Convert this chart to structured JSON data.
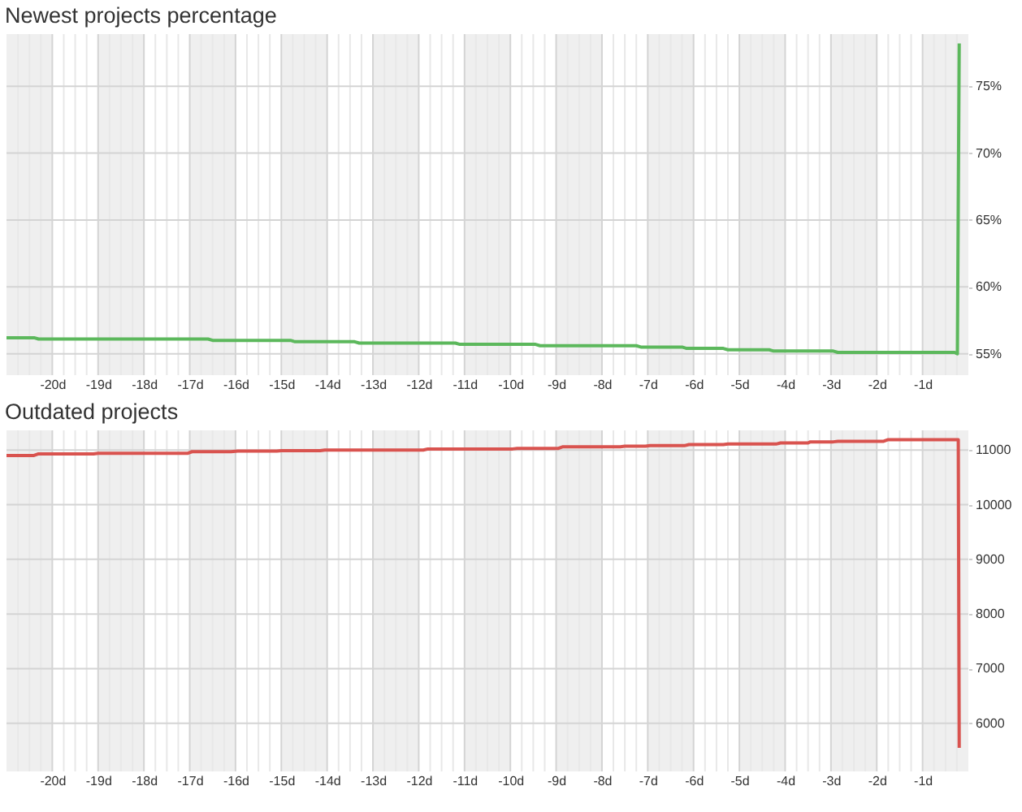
{
  "chart_data": [
    {
      "type": "line",
      "title": "Newest projects percentage",
      "x": [
        -21,
        -20.4,
        -20.3,
        -16.6,
        -16.5,
        -14.8,
        -14.7,
        -13.4,
        -13.3,
        -11.2,
        -11.1,
        -9.45,
        -9.35,
        -7.25,
        -7.15,
        -6.25,
        -6.15,
        -5.35,
        -5.25,
        -4.35,
        -4.25,
        -2.95,
        -2.85,
        -0.3,
        -0.24,
        -0.2
      ],
      "series": [
        {
          "color": "#5cb85c",
          "values": [
            56.2,
            56.2,
            56.1,
            56.1,
            56.0,
            56.0,
            55.9,
            55.9,
            55.8,
            55.8,
            55.7,
            55.7,
            55.6,
            55.6,
            55.5,
            55.5,
            55.4,
            55.4,
            55.3,
            55.3,
            55.2,
            55.2,
            55.1,
            55.1,
            55.0,
            78.2
          ]
        }
      ],
      "xlim": [
        -21,
        0
      ],
      "xticks": [
        {
          "value": -20.75,
          "label": null
        },
        {
          "value": -20.5,
          "label": null
        },
        {
          "value": -20.25,
          "label": null
        },
        {
          "value": -20,
          "label": "-20d"
        },
        {
          "value": -19.75,
          "label": null
        },
        {
          "value": -19.5,
          "label": null
        },
        {
          "value": -19.25,
          "label": null
        },
        {
          "value": -19,
          "label": "-19d"
        },
        {
          "value": -18.75,
          "label": null
        },
        {
          "value": -18.5,
          "label": null
        },
        {
          "value": -18.25,
          "label": null
        },
        {
          "value": -18,
          "label": "-18d"
        },
        {
          "value": -17.75,
          "label": null
        },
        {
          "value": -17.5,
          "label": null
        },
        {
          "value": -17.25,
          "label": null
        },
        {
          "value": -17,
          "label": "-17d"
        },
        {
          "value": -16.75,
          "label": null
        },
        {
          "value": -16.5,
          "label": null
        },
        {
          "value": -16.25,
          "label": null
        },
        {
          "value": -16,
          "label": "-16d"
        },
        {
          "value": -15.75,
          "label": null
        },
        {
          "value": -15.5,
          "label": null
        },
        {
          "value": -15.25,
          "label": null
        },
        {
          "value": -15,
          "label": "-15d"
        },
        {
          "value": -14.75,
          "label": null
        },
        {
          "value": -14.5,
          "label": null
        },
        {
          "value": -14.25,
          "label": null
        },
        {
          "value": -14,
          "label": "-14d"
        },
        {
          "value": -13.75,
          "label": null
        },
        {
          "value": -13.5,
          "label": null
        },
        {
          "value": -13.25,
          "label": null
        },
        {
          "value": -13,
          "label": "-13d"
        },
        {
          "value": -12.75,
          "label": null
        },
        {
          "value": -12.5,
          "label": null
        },
        {
          "value": -12.25,
          "label": null
        },
        {
          "value": -12,
          "label": "-12d"
        },
        {
          "value": -11.75,
          "label": null
        },
        {
          "value": -11.5,
          "label": null
        },
        {
          "value": -11.25,
          "label": null
        },
        {
          "value": -11,
          "label": "-11d"
        },
        {
          "value": -10.75,
          "label": null
        },
        {
          "value": -10.5,
          "label": null
        },
        {
          "value": -10.25,
          "label": null
        },
        {
          "value": -10,
          "label": "-10d"
        },
        {
          "value": -9.75,
          "label": null
        },
        {
          "value": -9.5,
          "label": null
        },
        {
          "value": -9.25,
          "label": null
        },
        {
          "value": -9,
          "label": "-9d"
        },
        {
          "value": -8.75,
          "label": null
        },
        {
          "value": -8.5,
          "label": null
        },
        {
          "value": -8.25,
          "label": null
        },
        {
          "value": -8,
          "label": "-8d"
        },
        {
          "value": -7.75,
          "label": null
        },
        {
          "value": -7.5,
          "label": null
        },
        {
          "value": -7.25,
          "label": null
        },
        {
          "value": -7,
          "label": "-7d"
        },
        {
          "value": -6.75,
          "label": null
        },
        {
          "value": -6.5,
          "label": null
        },
        {
          "value": -6.25,
          "label": null
        },
        {
          "value": -6,
          "label": "-6d"
        },
        {
          "value": -5.75,
          "label": null
        },
        {
          "value": -5.5,
          "label": null
        },
        {
          "value": -5.25,
          "label": null
        },
        {
          "value": -5,
          "label": "-5d"
        },
        {
          "value": -4.75,
          "label": null
        },
        {
          "value": -4.5,
          "label": null
        },
        {
          "value": -4.25,
          "label": null
        },
        {
          "value": -4,
          "label": "-4d"
        },
        {
          "value": -3.75,
          "label": null
        },
        {
          "value": -3.5,
          "label": null
        },
        {
          "value": -3.25,
          "label": null
        },
        {
          "value": -3,
          "label": "-3d"
        },
        {
          "value": -2.75,
          "label": null
        },
        {
          "value": -2.5,
          "label": null
        },
        {
          "value": -2.25,
          "label": null
        },
        {
          "value": -2,
          "label": "-2d"
        },
        {
          "value": -1.75,
          "label": null
        },
        {
          "value": -1.5,
          "label": null
        },
        {
          "value": -1.25,
          "label": null
        },
        {
          "value": -1,
          "label": "-1d"
        },
        {
          "value": -0.75,
          "label": null
        },
        {
          "value": -0.5,
          "label": null
        },
        {
          "value": -0.25,
          "label": null
        }
      ],
      "ylim": [
        53.4,
        78.9
      ],
      "yticks": [
        {
          "value": 55,
          "label": "55%"
        },
        {
          "value": 60,
          "label": "60%"
        },
        {
          "value": 65,
          "label": "65%"
        },
        {
          "value": 70,
          "label": "70%"
        },
        {
          "value": 75,
          "label": "75%"
        }
      ],
      "grid": true,
      "bands": [
        {
          "axis": "x",
          "from": -21,
          "to": -20,
          "color": "#efefef"
        },
        {
          "axis": "x",
          "from": -19,
          "to": -18,
          "color": "#efefef"
        },
        {
          "axis": "x",
          "from": -17,
          "to": -16,
          "color": "#efefef"
        },
        {
          "axis": "x",
          "from": -15,
          "to": -14,
          "color": "#efefef"
        },
        {
          "axis": "x",
          "from": -13,
          "to": -12,
          "color": "#efefef"
        },
        {
          "axis": "x",
          "from": -11,
          "to": -10,
          "color": "#efefef"
        },
        {
          "axis": "x",
          "from": -9,
          "to": -8,
          "color": "#efefef"
        },
        {
          "axis": "x",
          "from": -7,
          "to": -6,
          "color": "#efefef"
        },
        {
          "axis": "x",
          "from": -5,
          "to": -4,
          "color": "#efefef"
        },
        {
          "axis": "x",
          "from": -3,
          "to": -2,
          "color": "#efefef"
        },
        {
          "axis": "x",
          "from": -1,
          "to": 0,
          "color": "#efefef"
        }
      ]
    },
    {
      "type": "line",
      "title": "Outdated projects",
      "x": [
        -21,
        -20.4,
        -20.3,
        -19.1,
        -19.0,
        -17.05,
        -16.95,
        -16.1,
        -15.95,
        -15.1,
        -15.0,
        -14.15,
        -14.05,
        -11.9,
        -11.8,
        -9.95,
        -9.85,
        -8.95,
        -8.85,
        -7.6,
        -7.5,
        -7.05,
        -6.95,
        -6.2,
        -6.1,
        -5.35,
        -5.25,
        -4.2,
        -4.1,
        -3.5,
        -3.45,
        -2.95,
        -2.85,
        -1.85,
        -1.75,
        -0.22,
        -0.2
      ],
      "series": [
        {
          "color": "#d9534f",
          "values": [
            10900,
            10900,
            10930,
            10930,
            10940,
            10940,
            10970,
            10970,
            10980,
            10980,
            10990,
            10990,
            11000,
            11000,
            11020,
            11020,
            11030,
            11030,
            11060,
            11060,
            11070,
            11070,
            11080,
            11080,
            11100,
            11100,
            11110,
            11110,
            11130,
            11130,
            11150,
            11150,
            11160,
            11160,
            11190,
            11190,
            5550
          ]
        }
      ],
      "xlim": [
        -21,
        0
      ],
      "xticks": [
        {
          "value": -20.75,
          "label": null
        },
        {
          "value": -20.5,
          "label": null
        },
        {
          "value": -20.25,
          "label": null
        },
        {
          "value": -20,
          "label": "-20d"
        },
        {
          "value": -19.75,
          "label": null
        },
        {
          "value": -19.5,
          "label": null
        },
        {
          "value": -19.25,
          "label": null
        },
        {
          "value": -19,
          "label": "-19d"
        },
        {
          "value": -18.75,
          "label": null
        },
        {
          "value": -18.5,
          "label": null
        },
        {
          "value": -18.25,
          "label": null
        },
        {
          "value": -18,
          "label": "-18d"
        },
        {
          "value": -17.75,
          "label": null
        },
        {
          "value": -17.5,
          "label": null
        },
        {
          "value": -17.25,
          "label": null
        },
        {
          "value": -17,
          "label": "-17d"
        },
        {
          "value": -16.75,
          "label": null
        },
        {
          "value": -16.5,
          "label": null
        },
        {
          "value": -16.25,
          "label": null
        },
        {
          "value": -16,
          "label": "-16d"
        },
        {
          "value": -15.75,
          "label": null
        },
        {
          "value": -15.5,
          "label": null
        },
        {
          "value": -15.25,
          "label": null
        },
        {
          "value": -15,
          "label": "-15d"
        },
        {
          "value": -14.75,
          "label": null
        },
        {
          "value": -14.5,
          "label": null
        },
        {
          "value": -14.25,
          "label": null
        },
        {
          "value": -14,
          "label": "-14d"
        },
        {
          "value": -13.75,
          "label": null
        },
        {
          "value": -13.5,
          "label": null
        },
        {
          "value": -13.25,
          "label": null
        },
        {
          "value": -13,
          "label": "-13d"
        },
        {
          "value": -12.75,
          "label": null
        },
        {
          "value": -12.5,
          "label": null
        },
        {
          "value": -12.25,
          "label": null
        },
        {
          "value": -12,
          "label": "-12d"
        },
        {
          "value": -11.75,
          "label": null
        },
        {
          "value": -11.5,
          "label": null
        },
        {
          "value": -11.25,
          "label": null
        },
        {
          "value": -11,
          "label": "-11d"
        },
        {
          "value": -10.75,
          "label": null
        },
        {
          "value": -10.5,
          "label": null
        },
        {
          "value": -10.25,
          "label": null
        },
        {
          "value": -10,
          "label": "-10d"
        },
        {
          "value": -9.75,
          "label": null
        },
        {
          "value": -9.5,
          "label": null
        },
        {
          "value": -9.25,
          "label": null
        },
        {
          "value": -9,
          "label": "-9d"
        },
        {
          "value": -8.75,
          "label": null
        },
        {
          "value": -8.5,
          "label": null
        },
        {
          "value": -8.25,
          "label": null
        },
        {
          "value": -8,
          "label": "-8d"
        },
        {
          "value": -7.75,
          "label": null
        },
        {
          "value": -7.5,
          "label": null
        },
        {
          "value": -7.25,
          "label": null
        },
        {
          "value": -7,
          "label": "-7d"
        },
        {
          "value": -6.75,
          "label": null
        },
        {
          "value": -6.5,
          "label": null
        },
        {
          "value": -6.25,
          "label": null
        },
        {
          "value": -6,
          "label": "-6d"
        },
        {
          "value": -5.75,
          "label": null
        },
        {
          "value": -5.5,
          "label": null
        },
        {
          "value": -5.25,
          "label": null
        },
        {
          "value": -5,
          "label": "-5d"
        },
        {
          "value": -4.75,
          "label": null
        },
        {
          "value": -4.5,
          "label": null
        },
        {
          "value": -4.25,
          "label": null
        },
        {
          "value": -4,
          "label": "-4d"
        },
        {
          "value": -3.75,
          "label": null
        },
        {
          "value": -3.5,
          "label": null
        },
        {
          "value": -3.25,
          "label": null
        },
        {
          "value": -3,
          "label": "-3d"
        },
        {
          "value": -2.75,
          "label": null
        },
        {
          "value": -2.5,
          "label": null
        },
        {
          "value": -2.25,
          "label": null
        },
        {
          "value": -2,
          "label": "-2d"
        },
        {
          "value": -1.75,
          "label": null
        },
        {
          "value": -1.5,
          "label": null
        },
        {
          "value": -1.25,
          "label": null
        },
        {
          "value": -1,
          "label": "-1d"
        },
        {
          "value": -0.75,
          "label": null
        },
        {
          "value": -0.5,
          "label": null
        },
        {
          "value": -0.25,
          "label": null
        }
      ],
      "ylim": [
        5120,
        11360
      ],
      "yticks": [
        6000,
        7000,
        8000,
        9000,
        10000,
        11000
      ],
      "grid": true,
      "bands": [
        {
          "axis": "x",
          "from": -21,
          "to": -20,
          "color": "#efefef"
        },
        {
          "axis": "x",
          "from": -19,
          "to": -18,
          "color": "#efefef"
        },
        {
          "axis": "x",
          "from": -17,
          "to": -16,
          "color": "#efefef"
        },
        {
          "axis": "x",
          "from": -15,
          "to": -14,
          "color": "#efefef"
        },
        {
          "axis": "x",
          "from": -13,
          "to": -12,
          "color": "#efefef"
        },
        {
          "axis": "x",
          "from": -11,
          "to": -10,
          "color": "#efefef"
        },
        {
          "axis": "x",
          "from": -9,
          "to": -8,
          "color": "#efefef"
        },
        {
          "axis": "x",
          "from": -7,
          "to": -6,
          "color": "#efefef"
        },
        {
          "axis": "x",
          "from": -5,
          "to": -4,
          "color": "#efefef"
        },
        {
          "axis": "x",
          "from": -3,
          "to": -2,
          "color": "#efefef"
        },
        {
          "axis": "x",
          "from": -1,
          "to": 0,
          "color": "#efefef"
        }
      ]
    }
  ]
}
